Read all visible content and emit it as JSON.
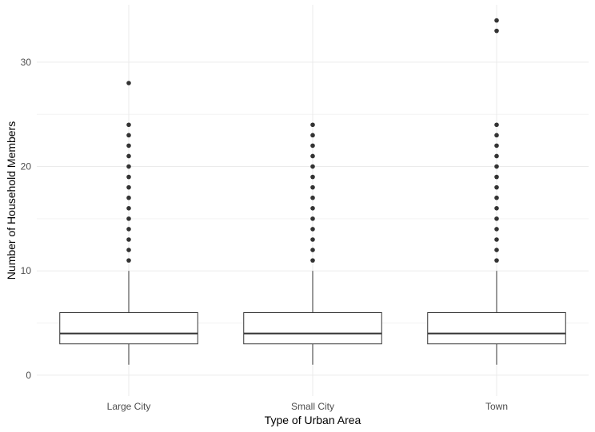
{
  "chart_data": {
    "type": "boxplot",
    "title": "",
    "xlabel": "Type of Urban Area",
    "ylabel": "Number of Household Members",
    "ylim": [
      -2,
      35.5
    ],
    "y_ticks": [
      0,
      10,
      20,
      30
    ],
    "y_minor_ticks": [
      5,
      15,
      25
    ],
    "grid": true,
    "legend": "none",
    "categories": [
      "Large City",
      "Small City",
      "Town"
    ],
    "boxes": [
      {
        "category": "Large City",
        "min": 1,
        "q1": 3,
        "median": 4,
        "q3": 6,
        "max": 10,
        "outliers": [
          11,
          12,
          13,
          14,
          15,
          16,
          17,
          18,
          19,
          20,
          21,
          22,
          23,
          24,
          28
        ]
      },
      {
        "category": "Small City",
        "min": 1,
        "q1": 3,
        "median": 4,
        "q3": 6,
        "max": 10,
        "outliers": [
          11,
          12,
          13,
          14,
          15,
          16,
          17,
          18,
          19,
          20,
          21,
          22,
          23,
          24
        ]
      },
      {
        "category": "Town",
        "min": 1,
        "q1": 3,
        "median": 4,
        "q3": 6,
        "max": 10,
        "outliers": [
          11,
          12,
          13,
          14,
          15,
          16,
          17,
          18,
          19,
          20,
          21,
          22,
          23,
          24,
          33,
          34
        ]
      }
    ],
    "colors": {
      "box_fill": "#ffffff",
      "box_stroke": "#333333",
      "grid_major": "#ebebeb",
      "grid_minor": "#f3f3f3",
      "tick_text": "#4d4d4d"
    }
  }
}
